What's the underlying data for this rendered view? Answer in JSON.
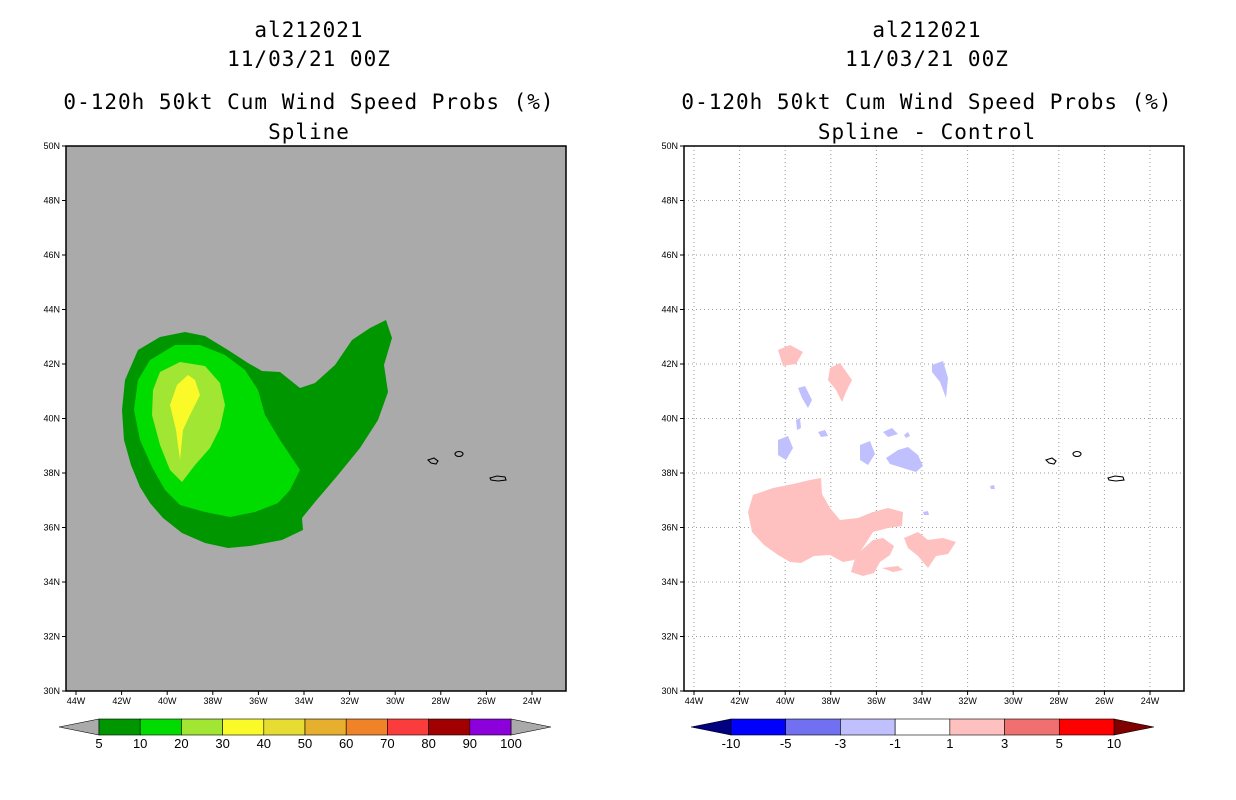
{
  "left": {
    "title_storm": "al212021",
    "title_time": "11/03/21 00Z",
    "title_product": "0-120h 50kt Cum Wind Speed Probs (%)",
    "title_method": "Spline",
    "background_color": "#aaaaaa",
    "colorbar": {
      "colors": [
        "#009600",
        "#00dc00",
        "#a0e632",
        "#fafa28",
        "#e6dc32",
        "#e6af2d",
        "#f08228",
        "#fa3c3c",
        "#a00000",
        "#8c00dc"
      ],
      "labels": [
        "5",
        "10",
        "20",
        "30",
        "40",
        "50",
        "60",
        "70",
        "80",
        "90",
        "100"
      ],
      "under_color": "#aaaaaa",
      "over_color": "#aaaaaa"
    }
  },
  "right": {
    "title_storm": "al212021",
    "title_time": "11/03/21 00Z",
    "title_product": "0-120h 50kt Cum Wind Speed Probs (%)",
    "title_method": "Spline - Control",
    "background_color": "#ffffff",
    "colorbar": {
      "colors": [
        "#0000ff",
        "#7070f0",
        "#c0c0ff",
        "#ffffff",
        "#ffc0c0",
        "#f07070",
        "#ff0000"
      ],
      "labels": [
        "-10",
        "-5",
        "-3",
        "-1",
        "1",
        "3",
        "5",
        "10"
      ],
      "under_color": "#000080",
      "over_color": "#800000"
    }
  },
  "axes": {
    "lat_labels": [
      "50N",
      "48N",
      "46N",
      "44N",
      "42N",
      "40N",
      "38N",
      "36N",
      "34N",
      "32N",
      "30N"
    ],
    "lon_labels": [
      "44W",
      "42W",
      "40W",
      "38W",
      "36W",
      "34W",
      "32W",
      "30W",
      "28W",
      "26W",
      "24W"
    ]
  },
  "land_features": [
    "azores-flores-island",
    "azores-central-islands",
    "azores-sao-miguel-island"
  ]
}
